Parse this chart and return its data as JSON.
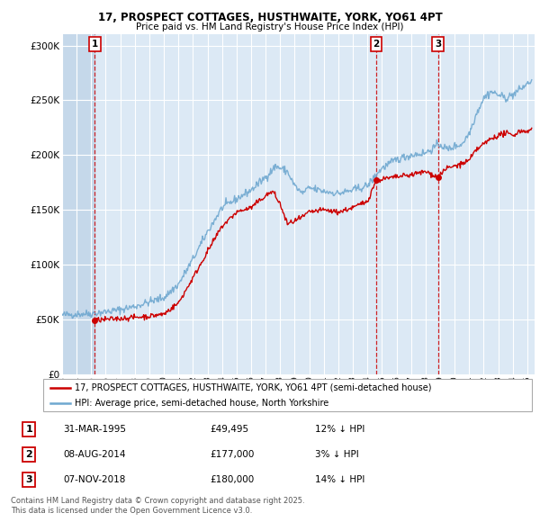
{
  "title": "17, PROSPECT COTTAGES, HUSTHWAITE, YORK, YO61 4PT",
  "subtitle": "Price paid vs. HM Land Registry's House Price Index (HPI)",
  "legend_line1": "17, PROSPECT COTTAGES, HUSTHWAITE, YORK, YO61 4PT (semi-detached house)",
  "legend_line2": "HPI: Average price, semi-detached house, North Yorkshire",
  "footer": "Contains HM Land Registry data © Crown copyright and database right 2025.\nThis data is licensed under the Open Government Licence v3.0.",
  "sale_color": "#cc0000",
  "hpi_color": "#6fa8d0",
  "background_chart": "#dce9f5",
  "background_hatch": "#c5d8ea",
  "grid_color": "#ffffff",
  "sale_points": [
    {
      "date": 1995.25,
      "price": 49495,
      "label": "1"
    },
    {
      "date": 2014.6,
      "price": 177000,
      "label": "2"
    },
    {
      "date": 2018.85,
      "price": 180000,
      "label": "3"
    }
  ],
  "annotations": [
    {
      "label": "1",
      "date_str": "31-MAR-1995",
      "price_str": "£49,495",
      "hpi_str": "12% ↓ HPI"
    },
    {
      "label": "2",
      "date_str": "08-AUG-2014",
      "price_str": "£177,000",
      "hpi_str": "3% ↓ HPI"
    },
    {
      "label": "3",
      "date_str": "07-NOV-2018",
      "price_str": "£180,000",
      "hpi_str": "14% ↓ HPI"
    }
  ],
  "xlim": [
    1993.0,
    2025.5
  ],
  "ylim": [
    0,
    310000
  ],
  "yticks": [
    0,
    50000,
    100000,
    150000,
    200000,
    250000,
    300000
  ],
  "ytick_labels": [
    "£0",
    "£50K",
    "£100K",
    "£150K",
    "£200K",
    "£250K",
    "£300K"
  ],
  "xtick_years": [
    1993,
    1994,
    1995,
    1996,
    1997,
    1998,
    1999,
    2000,
    2001,
    2002,
    2003,
    2004,
    2005,
    2006,
    2007,
    2008,
    2009,
    2010,
    2011,
    2012,
    2013,
    2014,
    2015,
    2016,
    2017,
    2018,
    2019,
    2020,
    2021,
    2022,
    2023,
    2024,
    2025
  ],
  "hpi_keypoints": [
    [
      1993.0,
      54000
    ],
    [
      1994.0,
      55000
    ],
    [
      1995.0,
      55500
    ],
    [
      1996.0,
      57000
    ],
    [
      1997.0,
      59000
    ],
    [
      1998.0,
      62000
    ],
    [
      1999.0,
      66000
    ],
    [
      2000.0,
      70000
    ],
    [
      2001.0,
      82000
    ],
    [
      2002.0,
      105000
    ],
    [
      2003.0,
      130000
    ],
    [
      2004.0,
      152000
    ],
    [
      2005.0,
      160000
    ],
    [
      2006.0,
      168000
    ],
    [
      2007.0,
      180000
    ],
    [
      2007.7,
      190000
    ],
    [
      2008.5,
      185000
    ],
    [
      2009.0,
      172000
    ],
    [
      2009.5,
      165000
    ],
    [
      2010.0,
      170000
    ],
    [
      2011.0,
      167000
    ],
    [
      2012.0,
      165000
    ],
    [
      2013.0,
      168000
    ],
    [
      2014.0,
      172000
    ],
    [
      2014.6,
      182000
    ],
    [
      2015.0,
      188000
    ],
    [
      2016.0,
      196000
    ],
    [
      2017.0,
      200000
    ],
    [
      2018.0,
      202000
    ],
    [
      2018.85,
      209000
    ],
    [
      2019.0,
      210000
    ],
    [
      2019.5,
      205000
    ],
    [
      2020.0,
      208000
    ],
    [
      2020.5,
      210000
    ],
    [
      2021.0,
      220000
    ],
    [
      2021.5,
      238000
    ],
    [
      2022.0,
      252000
    ],
    [
      2022.5,
      258000
    ],
    [
      2023.0,
      255000
    ],
    [
      2023.5,
      252000
    ],
    [
      2024.0,
      255000
    ],
    [
      2024.5,
      260000
    ],
    [
      2025.0,
      265000
    ],
    [
      2025.3,
      268000
    ]
  ],
  "sale_keypoints": [
    [
      1995.25,
      49495
    ],
    [
      1996.0,
      50000
    ],
    [
      1997.0,
      51000
    ],
    [
      1998.0,
      52000
    ],
    [
      1999.0,
      53000
    ],
    [
      2000.0,
      55000
    ],
    [
      2001.0,
      65000
    ],
    [
      2002.0,
      88000
    ],
    [
      2003.0,
      112000
    ],
    [
      2004.0,
      135000
    ],
    [
      2005.0,
      148000
    ],
    [
      2006.0,
      152000
    ],
    [
      2007.0,
      163000
    ],
    [
      2007.5,
      167000
    ],
    [
      2008.0,
      155000
    ],
    [
      2008.5,
      137000
    ],
    [
      2009.0,
      140000
    ],
    [
      2009.5,
      143000
    ],
    [
      2010.0,
      148000
    ],
    [
      2011.0,
      150000
    ],
    [
      2012.0,
      148000
    ],
    [
      2013.0,
      152000
    ],
    [
      2014.0,
      158000
    ],
    [
      2014.6,
      177000
    ],
    [
      2015.0,
      178000
    ],
    [
      2016.0,
      180000
    ],
    [
      2017.0,
      182000
    ],
    [
      2018.0,
      185000
    ],
    [
      2018.85,
      180000
    ],
    [
      2019.0,
      183000
    ],
    [
      2019.5,
      188000
    ],
    [
      2020.0,
      190000
    ],
    [
      2020.5,
      192000
    ],
    [
      2021.0,
      195000
    ],
    [
      2021.5,
      205000
    ],
    [
      2022.0,
      210000
    ],
    [
      2022.5,
      215000
    ],
    [
      2023.0,
      218000
    ],
    [
      2023.5,
      220000
    ],
    [
      2024.0,
      218000
    ],
    [
      2024.5,
      222000
    ],
    [
      2025.0,
      222000
    ],
    [
      2025.3,
      223000
    ]
  ]
}
